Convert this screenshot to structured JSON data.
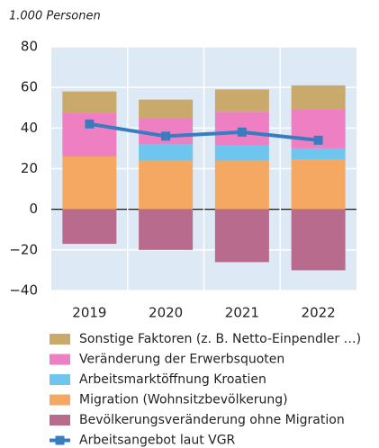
{
  "chart_data": {
    "type": "bar",
    "stacked": true,
    "unit_label": "1.000 Personen",
    "categories": [
      "2019",
      "2020",
      "2021",
      "2022"
    ],
    "ylim": [
      -40,
      80
    ],
    "yticks": [
      {
        "value": -40,
        "label": "−40"
      },
      {
        "value": -20,
        "label": "−20"
      },
      0,
      20,
      40,
      60,
      80
    ],
    "grid": true,
    "series": [
      {
        "name": "Sonstige Faktoren (z. B. Netto-Einpendler …)",
        "color": "#caa96c",
        "values": [
          10.5,
          9,
          11,
          12
        ]
      },
      {
        "name": "Veränderung der Erwerbsquoten",
        "color": "#ef7fc3",
        "values": [
          21.5,
          13,
          16.5,
          19
        ]
      },
      {
        "name": "Arbeitsmarktöffnung Kroatien",
        "color": "#6ec6ef",
        "values": [
          0,
          8,
          7.5,
          5.5
        ]
      },
      {
        "name": "Migration (Wohnsitzbevölkerung)",
        "color": "#f5a862",
        "values": [
          26,
          24,
          24,
          24.5
        ]
      },
      {
        "name": "Bevölkerungsveränderung ohne Migration",
        "color": "#b86b8c",
        "values": [
          -17,
          -20,
          -26,
          -30
        ]
      },
      {
        "name": "Arbeitsangebot laut VGR",
        "color": "#3a7cc0",
        "type": "line",
        "values": [
          42,
          36,
          38,
          34
        ]
      }
    ]
  }
}
